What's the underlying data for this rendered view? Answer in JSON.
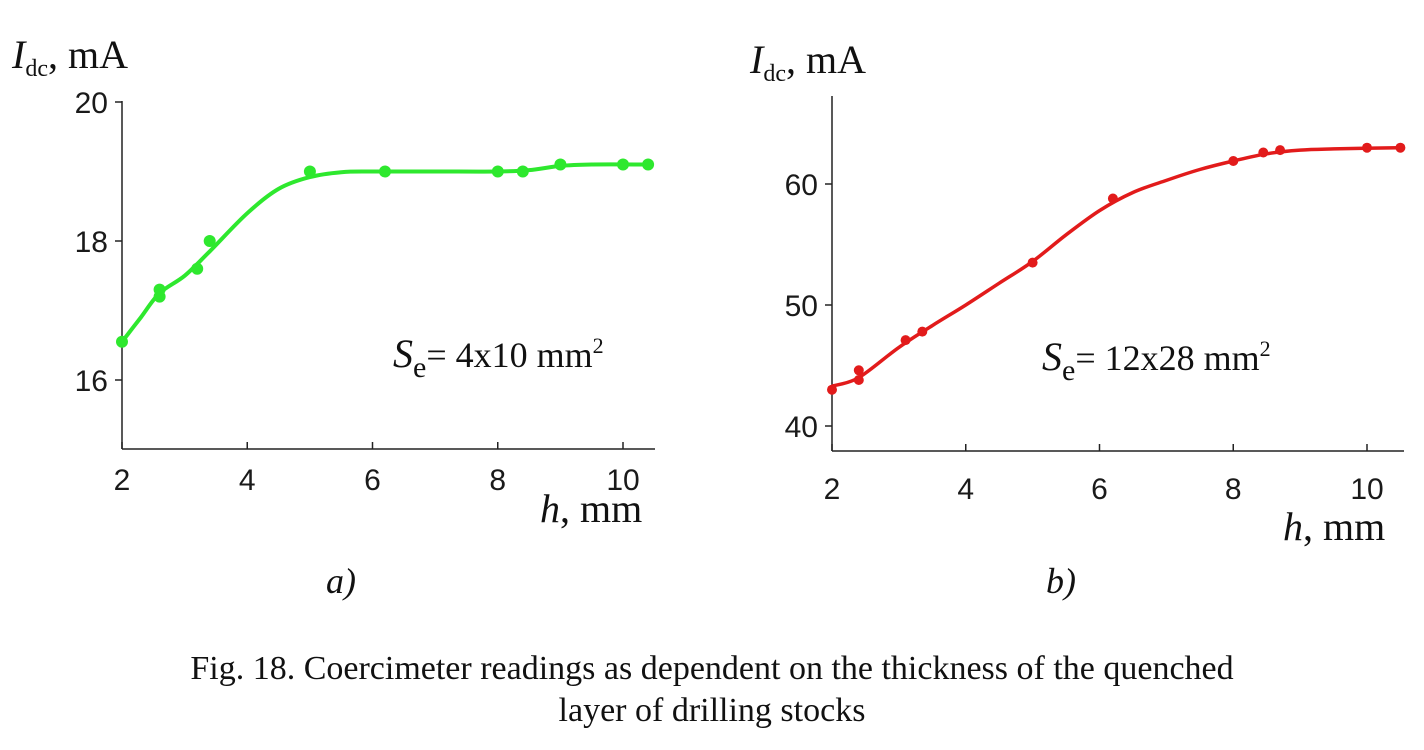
{
  "chart_data": [
    {
      "type": "scatter",
      "panel_label": "a)",
      "ylabel": {
        "symbol": "I",
        "subscript": "dc",
        "unit": ", mA"
      },
      "xlabel": {
        "symbol": "h",
        "unit": ", mm"
      },
      "annotation": {
        "symbol": "S",
        "subscript": "e",
        "text": "= 4x10 mm",
        "superscript": "2"
      },
      "xlim": [
        2,
        10.5
      ],
      "ylim": [
        15,
        20
      ],
      "xticks": [
        2,
        4,
        6,
        8,
        10
      ],
      "yticks": [
        16,
        18,
        20
      ],
      "color": "#2ee82e",
      "points": [
        [
          2.0,
          16.55
        ],
        [
          2.6,
          17.2
        ],
        [
          2.6,
          17.3
        ],
        [
          3.2,
          17.6
        ],
        [
          3.4,
          18.0
        ],
        [
          5.0,
          19.0
        ],
        [
          6.2,
          19.0
        ],
        [
          8.0,
          19.0
        ],
        [
          8.4,
          19.0
        ],
        [
          9.0,
          19.1
        ],
        [
          10.0,
          19.1
        ],
        [
          10.4,
          19.1
        ]
      ],
      "fit_curve": [
        [
          2.0,
          16.55
        ],
        [
          2.3,
          16.9
        ],
        [
          2.6,
          17.25
        ],
        [
          3.0,
          17.5
        ],
        [
          3.4,
          17.85
        ],
        [
          4.0,
          18.4
        ],
        [
          4.5,
          18.75
        ],
        [
          5.0,
          18.92
        ],
        [
          5.5,
          18.99
        ],
        [
          6.0,
          19.0
        ],
        [
          7.0,
          19.0
        ],
        [
          8.0,
          19.0
        ],
        [
          8.5,
          19.02
        ],
        [
          9.0,
          19.08
        ],
        [
          9.5,
          19.1
        ],
        [
          10.4,
          19.1
        ]
      ]
    },
    {
      "type": "scatter",
      "panel_label": "b)",
      "ylabel": {
        "symbol": "I",
        "subscript": "dc",
        "unit": ", mA"
      },
      "xlabel": {
        "symbol": "h",
        "unit": ", mm"
      },
      "annotation": {
        "symbol": "S",
        "subscript": "e",
        "text": "= 12x28 mm",
        "superscript": "2"
      },
      "xlim": [
        2,
        10.5
      ],
      "ylim": [
        38,
        67
      ],
      "xticks": [
        2,
        4,
        6,
        8,
        10
      ],
      "yticks": [
        40,
        50,
        60
      ],
      "color": "#e21b1b",
      "points": [
        [
          2.0,
          43.0
        ],
        [
          2.4,
          43.8
        ],
        [
          2.4,
          44.6
        ],
        [
          3.1,
          47.1
        ],
        [
          3.35,
          47.8
        ],
        [
          5.0,
          53.5
        ],
        [
          6.2,
          58.8
        ],
        [
          8.0,
          61.9
        ],
        [
          8.45,
          62.6
        ],
        [
          8.7,
          62.8
        ],
        [
          10.0,
          63.0
        ],
        [
          10.5,
          63.0
        ]
      ],
      "fit_curve": [
        [
          2.0,
          43.3
        ],
        [
          2.4,
          44.0
        ],
        [
          3.0,
          46.5
        ],
        [
          3.5,
          48.3
        ],
        [
          4.0,
          50.0
        ],
        [
          4.5,
          51.8
        ],
        [
          5.0,
          53.6
        ],
        [
          5.5,
          55.8
        ],
        [
          6.0,
          57.8
        ],
        [
          6.5,
          59.3
        ],
        [
          7.0,
          60.3
        ],
        [
          7.5,
          61.2
        ],
        [
          8.0,
          61.9
        ],
        [
          8.5,
          62.5
        ],
        [
          9.0,
          62.8
        ],
        [
          9.5,
          62.9
        ],
        [
          10.5,
          63.0
        ]
      ]
    }
  ],
  "caption": {
    "line1": "Fig. 18. Coercimeter readings as dependent on the thickness of the quenched",
    "line2": "layer of drilling stocks"
  }
}
